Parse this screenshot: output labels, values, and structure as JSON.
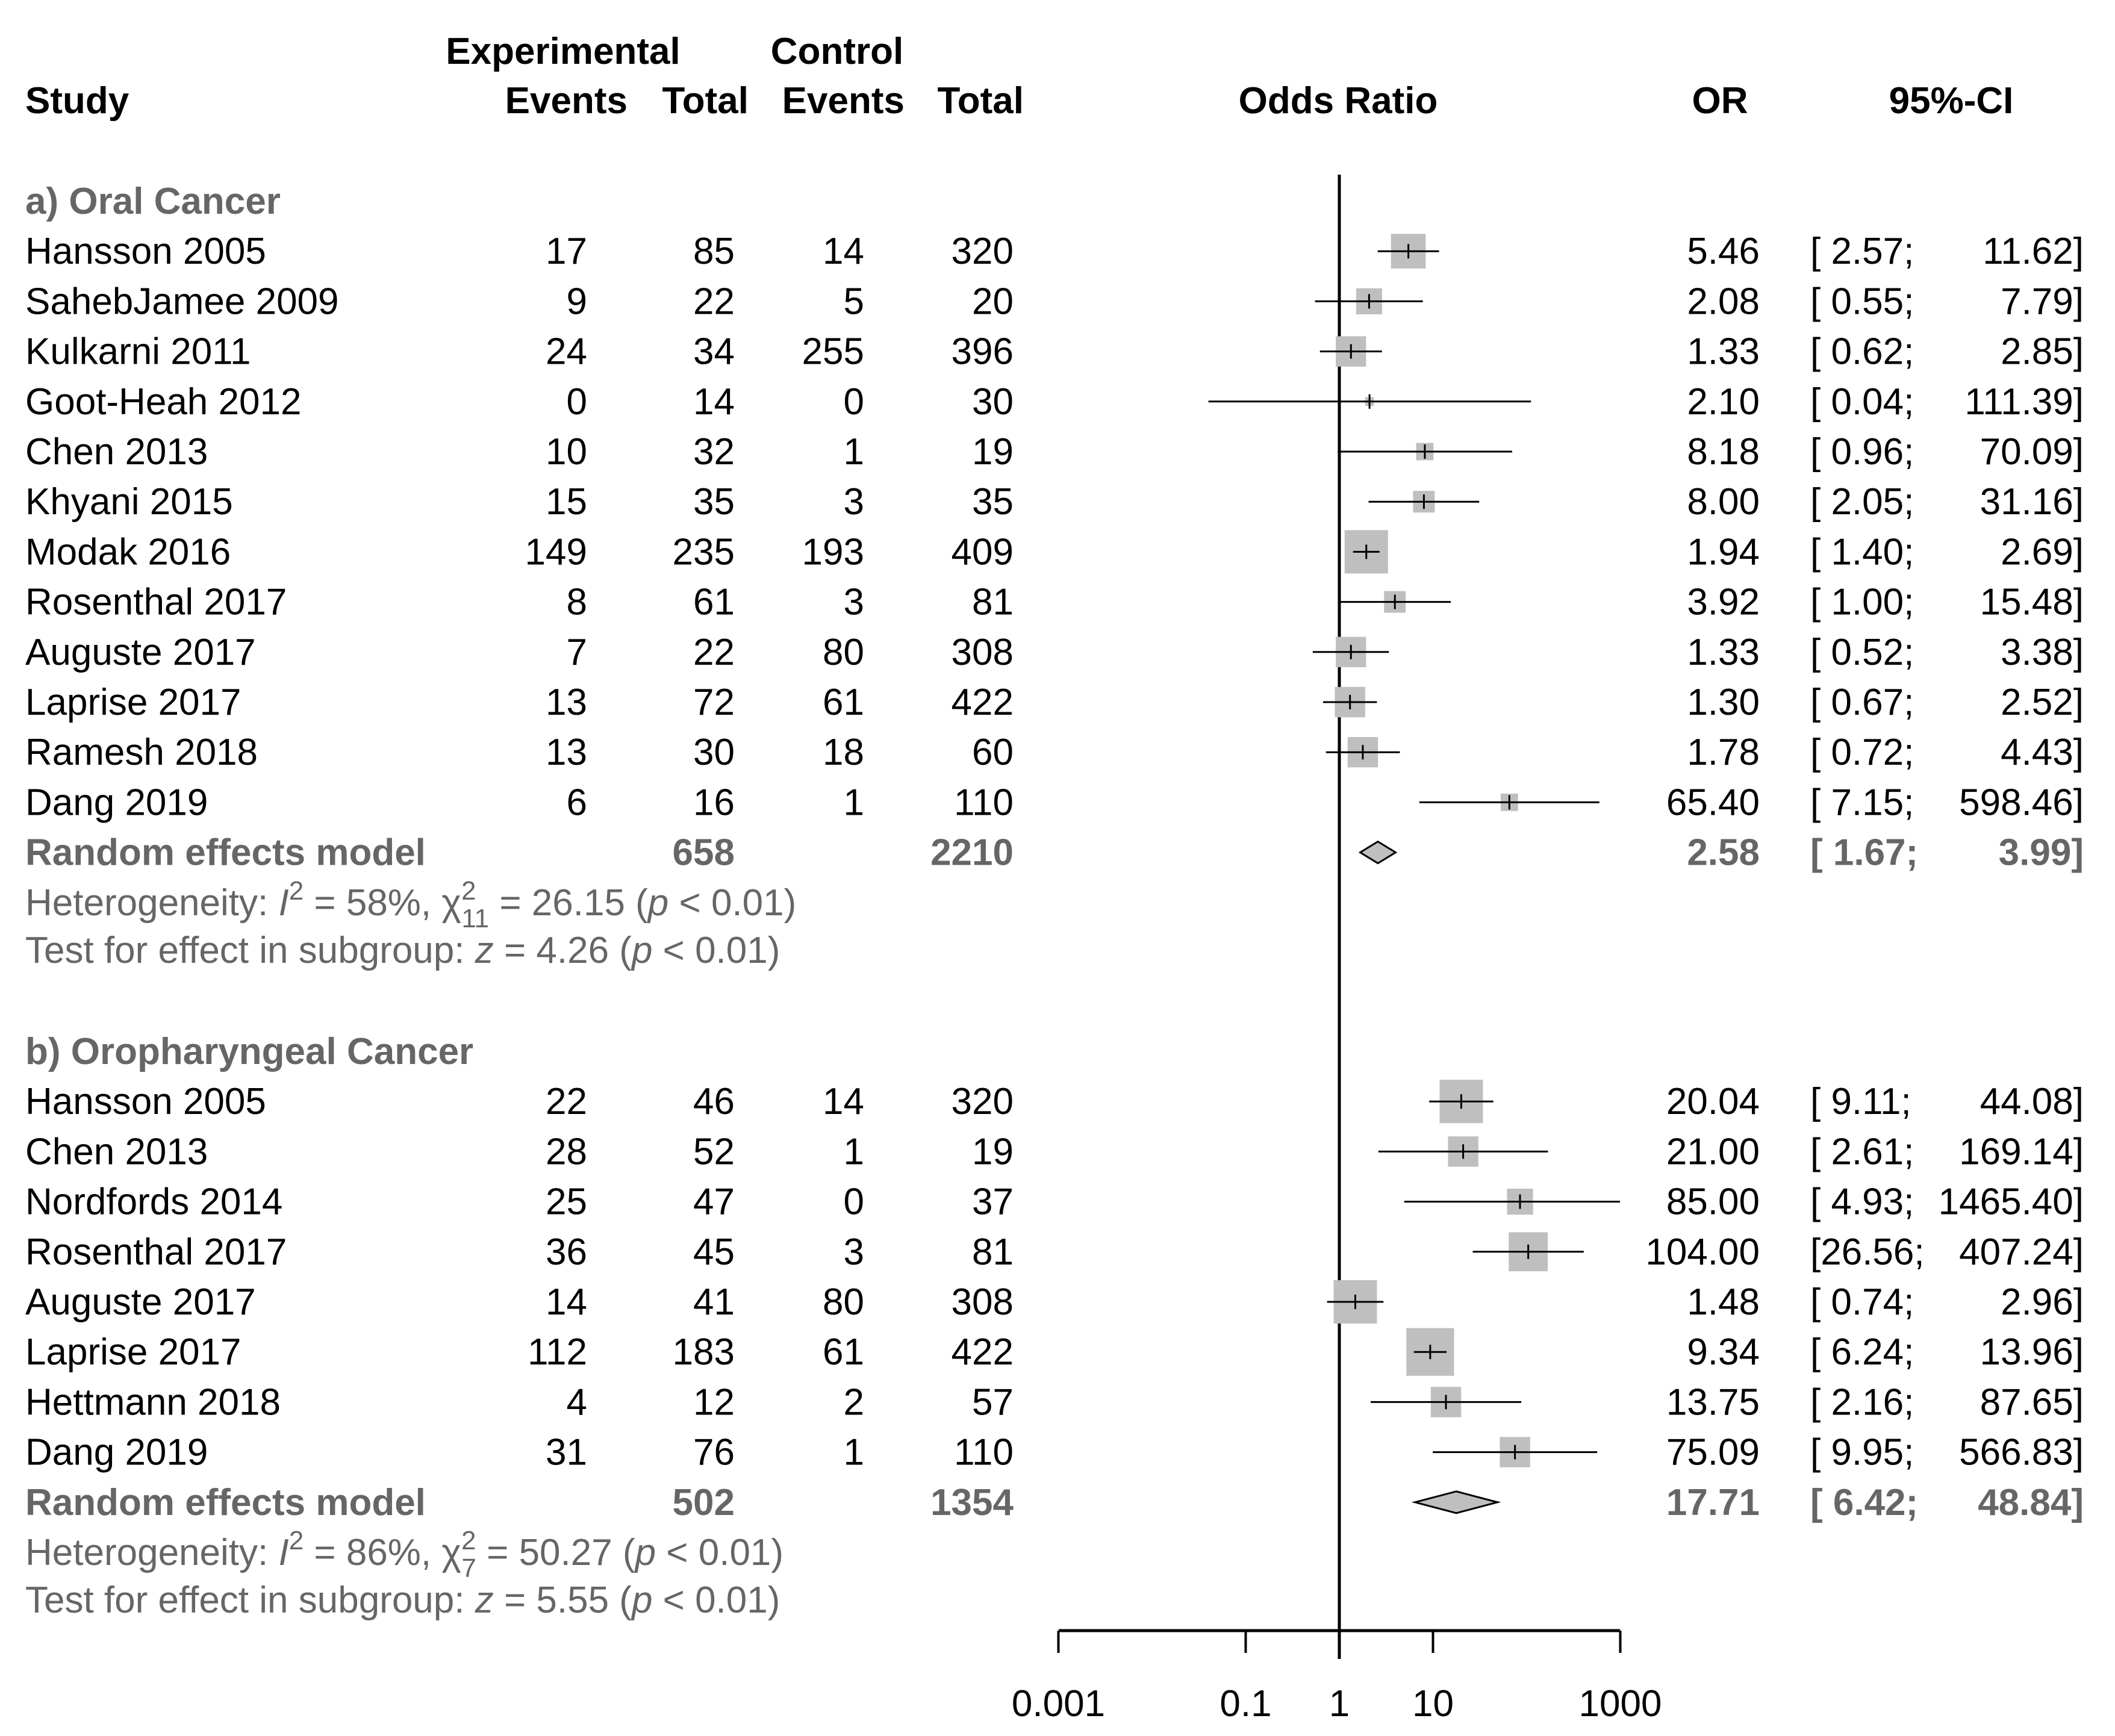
{
  "chart_data": {
    "type": "forest",
    "headers": {
      "study": "Study",
      "experimental": "Experimental",
      "control": "Control",
      "events": "Events",
      "total": "Total",
      "odds_ratio": "Odds Ratio",
      "or": "OR",
      "ci": "95%-CI"
    },
    "x_axis": {
      "scale": "log10",
      "ticks": [
        0.001,
        0.1,
        1,
        10,
        1000
      ],
      "tick_labels": [
        "0.001",
        "0.1",
        "1",
        "10",
        "1000"
      ],
      "null_line": 1
    },
    "colors": {
      "box": "#bfbfbf",
      "summary": "#bfbfbf",
      "subgroup_text": "#666666",
      "line": "#000000"
    },
    "subgroups": [
      {
        "title": "a) Oral Cancer",
        "studies": [
          {
            "study": "Hansson 2005",
            "exp_events": "17",
            "exp_total": "85",
            "ctrl_events": "14",
            "ctrl_total": "320",
            "or_text": "5.46",
            "ci_lo_text": "[ 2.57;",
            "ci_hi_text": "11.62]",
            "or": 5.46,
            "lo": 2.57,
            "hi": 11.62,
            "weight": 8
          },
          {
            "study": "SahebJamee 2009",
            "exp_events": "9",
            "exp_total": "22",
            "ctrl_events": "5",
            "ctrl_total": "20",
            "or_text": "2.08",
            "ci_lo_text": "[ 0.55;",
            "ci_hi_text": "7.79]",
            "or": 2.08,
            "lo": 0.55,
            "hi": 7.79,
            "weight": 6
          },
          {
            "study": "Kulkarni 2011",
            "exp_events": "24",
            "exp_total": "34",
            "ctrl_events": "255",
            "ctrl_total": "396",
            "or_text": "1.33",
            "ci_lo_text": "[ 0.62;",
            "ci_hi_text": "2.85]",
            "or": 1.33,
            "lo": 0.62,
            "hi": 2.85,
            "weight": 7
          },
          {
            "study": "Goot-Heah 2012",
            "exp_events": "0",
            "exp_total": "14",
            "ctrl_events": "0",
            "ctrl_total": "30",
            "or_text": "2.10",
            "ci_lo_text": "[ 0.04;",
            "ci_hi_text": "111.39]",
            "or": 2.1,
            "lo": 0.04,
            "hi": 111.39,
            "weight": 2
          },
          {
            "study": "Chen 2013",
            "exp_events": "10",
            "exp_total": "32",
            "ctrl_events": "1",
            "ctrl_total": "19",
            "or_text": "8.18",
            "ci_lo_text": "[ 0.96;",
            "ci_hi_text": "70.09]",
            "or": 8.18,
            "lo": 0.96,
            "hi": 70.09,
            "weight": 4
          },
          {
            "study": "Khyani 2015",
            "exp_events": "15",
            "exp_total": "35",
            "ctrl_events": "3",
            "ctrl_total": "35",
            "or_text": "8.00",
            "ci_lo_text": "[ 2.05;",
            "ci_hi_text": "31.16]",
            "or": 8.0,
            "lo": 2.05,
            "hi": 31.16,
            "weight": 5
          },
          {
            "study": "Modak 2016",
            "exp_events": "149",
            "exp_total": "235",
            "ctrl_events": "193",
            "ctrl_total": "409",
            "or_text": "1.94",
            "ci_lo_text": "[ 1.40;",
            "ci_hi_text": "2.69]",
            "or": 1.94,
            "lo": 1.4,
            "hi": 2.69,
            "weight": 10
          },
          {
            "study": "Rosenthal 2017",
            "exp_events": "8",
            "exp_total": "61",
            "ctrl_events": "3",
            "ctrl_total": "81",
            "or_text": "3.92",
            "ci_lo_text": "[ 1.00;",
            "ci_hi_text": "15.48]",
            "or": 3.92,
            "lo": 1.0,
            "hi": 15.48,
            "weight": 5
          },
          {
            "study": "Auguste 2017",
            "exp_events": "7",
            "exp_total": "22",
            "ctrl_events": "80",
            "ctrl_total": "308",
            "or_text": "1.33",
            "ci_lo_text": "[ 0.52;",
            "ci_hi_text": "3.38]",
            "or": 1.33,
            "lo": 0.52,
            "hi": 3.38,
            "weight": 7
          },
          {
            "study": "Laprise 2017",
            "exp_events": "13",
            "exp_total": "72",
            "ctrl_events": "61",
            "ctrl_total": "422",
            "or_text": "1.30",
            "ci_lo_text": "[ 0.67;",
            "ci_hi_text": "2.52]",
            "or": 1.3,
            "lo": 0.67,
            "hi": 2.52,
            "weight": 7
          },
          {
            "study": "Ramesh 2018",
            "exp_events": "13",
            "exp_total": "30",
            "ctrl_events": "18",
            "ctrl_total": "60",
            "or_text": "1.78",
            "ci_lo_text": "[ 0.72;",
            "ci_hi_text": "4.43]",
            "or": 1.78,
            "lo": 0.72,
            "hi": 4.43,
            "weight": 7
          },
          {
            "study": "Dang 2019",
            "exp_events": "6",
            "exp_total": "16",
            "ctrl_events": "1",
            "ctrl_total": "110",
            "or_text": "65.40",
            "ci_lo_text": "[ 7.15;",
            "ci_hi_text": "598.46]",
            "or": 65.4,
            "lo": 7.15,
            "hi": 598.46,
            "weight": 4
          }
        ],
        "summary": {
          "label": "Random effects model",
          "exp_total": "658",
          "ctrl_total": "2210",
          "or_text": "2.58",
          "ci_lo_text": "[ 1.67;",
          "ci_hi_text": "3.99]",
          "or": 2.58,
          "lo": 1.67,
          "hi": 3.99
        },
        "heterogeneity": {
          "prefix": "Heterogeneity: ",
          "I": "I",
          "sup2": "2",
          "i2_value": " = 58%, ",
          "chi": "χ",
          "chi_sup": "2",
          "chi_sub": "11",
          "chi_value": " = 26.15 (",
          "p": "p",
          "p_value": " < 0.01)"
        },
        "test": {
          "prefix": "Test for effect in subgroup: ",
          "z": "z",
          "z_value": " = 4.26 (",
          "p": "p",
          "p_value": " < 0.01)"
        }
      },
      {
        "title": "b) Oropharyngeal Cancer",
        "studies": [
          {
            "study": "Hansson 2005",
            "exp_events": "22",
            "exp_total": "46",
            "ctrl_events": "14",
            "ctrl_total": "320",
            "or_text": "20.04",
            "ci_lo_text": "[ 9.11;",
            "ci_hi_text": "44.08]",
            "or": 20.04,
            "lo": 9.11,
            "hi": 44.08,
            "weight": 10
          },
          {
            "study": "Chen 2013",
            "exp_events": "28",
            "exp_total": "52",
            "ctrl_events": "1",
            "ctrl_total": "19",
            "or_text": "21.00",
            "ci_lo_text": "[ 2.61;",
            "ci_hi_text": "169.14]",
            "or": 21.0,
            "lo": 2.61,
            "hi": 169.14,
            "weight": 7
          },
          {
            "study": "Nordfords 2014",
            "exp_events": "25",
            "exp_total": "47",
            "ctrl_events": "0",
            "ctrl_total": "37",
            "or_text": "85.00",
            "ci_lo_text": "[ 4.93;",
            "ci_hi_text": "1465.40]",
            "or": 85.0,
            "lo": 4.93,
            "hi": 1465.4,
            "weight": 6
          },
          {
            "study": "Rosenthal 2017",
            "exp_events": "36",
            "exp_total": "45",
            "ctrl_events": "3",
            "ctrl_total": "81",
            "or_text": "104.00",
            "ci_lo_text": "[26.56;",
            "ci_hi_text": "407.24]",
            "or": 104.0,
            "lo": 26.56,
            "hi": 407.24,
            "weight": 9
          },
          {
            "study": "Auguste 2017",
            "exp_events": "14",
            "exp_total": "41",
            "ctrl_events": "80",
            "ctrl_total": "308",
            "or_text": "1.48",
            "ci_lo_text": "[ 0.74;",
            "ci_hi_text": "2.96]",
            "or": 1.48,
            "lo": 0.74,
            "hi": 2.96,
            "weight": 10
          },
          {
            "study": "Laprise 2017",
            "exp_events": "112",
            "exp_total": "183",
            "ctrl_events": "61",
            "ctrl_total": "422",
            "or_text": "9.34",
            "ci_lo_text": "[ 6.24;",
            "ci_hi_text": "13.96]",
            "or": 9.34,
            "lo": 6.24,
            "hi": 13.96,
            "weight": 11
          },
          {
            "study": "Hettmann 2018",
            "exp_events": "4",
            "exp_total": "12",
            "ctrl_events": "2",
            "ctrl_total": "57",
            "or_text": "13.75",
            "ci_lo_text": "[ 2.16;",
            "ci_hi_text": "87.65]",
            "or": 13.75,
            "lo": 2.16,
            "hi": 87.65,
            "weight": 7
          },
          {
            "study": "Dang 2019",
            "exp_events": "31",
            "exp_total": "76",
            "ctrl_events": "1",
            "ctrl_total": "110",
            "or_text": "75.09",
            "ci_lo_text": "[ 9.95;",
            "ci_hi_text": "566.83]",
            "or": 75.09,
            "lo": 9.95,
            "hi": 566.83,
            "weight": 7
          }
        ],
        "summary": {
          "label": "Random effects model",
          "exp_total": "502",
          "ctrl_total": "1354",
          "or_text": "17.71",
          "ci_lo_text": "[ 6.42;",
          "ci_hi_text": "48.84]",
          "or": 17.71,
          "lo": 6.42,
          "hi": 48.84
        },
        "heterogeneity": {
          "prefix": "Heterogeneity: ",
          "I": "I",
          "sup2": "2",
          "i2_value": " = 86%, ",
          "chi": "χ",
          "chi_sup": "2",
          "chi_sub": "7",
          "chi_value": " = 50.27 (",
          "p": "p",
          "p_value": " < 0.01)"
        },
        "test": {
          "prefix": "Test for effect in subgroup: ",
          "z": "z",
          "z_value": " = 5.55 (",
          "p": "p",
          "p_value": " < 0.01)"
        }
      }
    ]
  }
}
